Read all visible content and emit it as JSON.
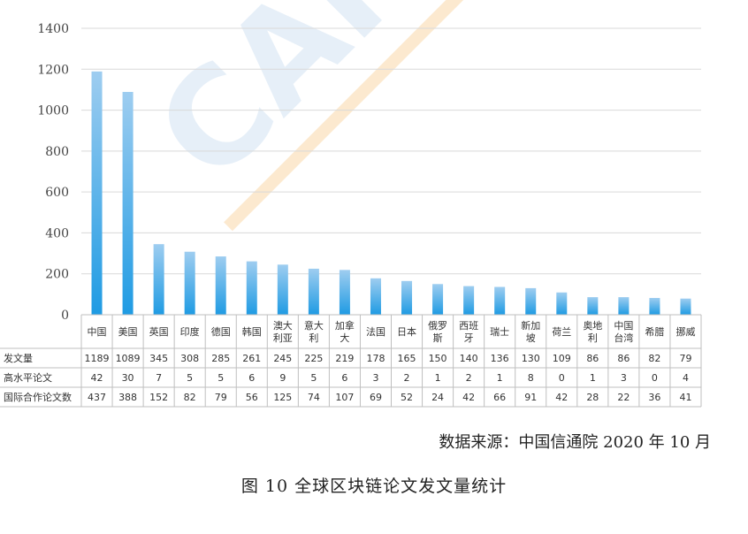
{
  "chart_data": {
    "type": "bar",
    "ylim": [
      0,
      1400
    ],
    "yticks": [
      0,
      200,
      400,
      600,
      800,
      1000,
      1200,
      1400
    ],
    "grid": true,
    "categories": [
      [
        "中国"
      ],
      [
        "美国"
      ],
      [
        "英国"
      ],
      [
        "印度"
      ],
      [
        "德国"
      ],
      [
        "韩国"
      ],
      [
        "澳大",
        "利亚"
      ],
      [
        "意大",
        "利"
      ],
      [
        "加拿",
        "大"
      ],
      [
        "法国"
      ],
      [
        "日本"
      ],
      [
        "俄罗",
        "斯"
      ],
      [
        "西班",
        "牙"
      ],
      [
        "瑞士"
      ],
      [
        "新加",
        "坡"
      ],
      [
        "荷兰"
      ],
      [
        "奥地",
        "利"
      ],
      [
        "中国",
        "台湾"
      ],
      [
        "希腊"
      ],
      [
        "挪威"
      ]
    ],
    "series": [
      {
        "name": "发文量",
        "values": [
          1189,
          1089,
          345,
          308,
          285,
          261,
          245,
          225,
          219,
          178,
          165,
          150,
          140,
          136,
          130,
          109,
          86,
          86,
          82,
          79
        ]
      },
      {
        "name": "高水平论文",
        "values": [
          42,
          30,
          7,
          5,
          5,
          6,
          9,
          5,
          6,
          3,
          2,
          1,
          2,
          1,
          8,
          0,
          1,
          3,
          0,
          4
        ]
      },
      {
        "name": "国际合作论文数",
        "values": [
          437,
          388,
          152,
          82,
          79,
          56,
          125,
          74,
          107,
          69,
          52,
          24,
          42,
          66,
          91,
          42,
          28,
          22,
          36,
          41
        ]
      }
    ],
    "bar_color_top": "#9ecdf0",
    "bar_color_bottom": "#1f9be3"
  },
  "watermark": {
    "text": "CAICT 中国",
    "colors": [
      "#cfe0f2",
      "#f7c98a"
    ]
  },
  "source": "数据来源：中国信通院  2020 年 10 月",
  "caption": "图  10  全球区块链论文发文量统计"
}
